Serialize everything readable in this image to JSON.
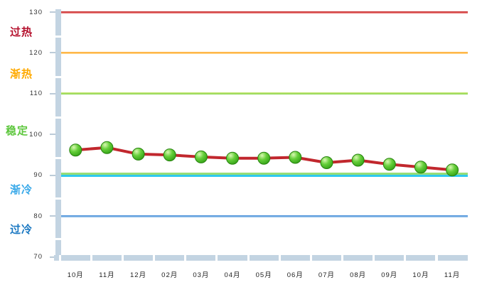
{
  "chart_data": {
    "type": "line",
    "title": "",
    "xlabel": "",
    "ylabel": "",
    "categories": [
      "10月",
      "11月",
      "12月",
      "02月",
      "03月",
      "04月",
      "05月",
      "06月",
      "07月",
      "08月",
      "09月",
      "10月",
      "11月"
    ],
    "series": [
      {
        "name": "monthly-index",
        "values": [
          96.2,
          96.8,
          95.2,
          95.0,
          94.5,
          94.2,
          94.2,
          94.4,
          93.1,
          93.7,
          92.7,
          92.0,
          91.3
        ],
        "line_color": "#c1272d",
        "marker_fill": "#4db82c",
        "marker_border": "#27830e"
      }
    ],
    "ylim": [
      70,
      130
    ],
    "yticks": [
      130,
      120,
      110,
      100,
      90,
      80,
      70
    ],
    "grid": false,
    "legend_position": "none",
    "zone_labels": [
      {
        "text": "过热",
        "name": "overheated",
        "color": "#b5122e",
        "y_value": 125.5
      },
      {
        "text": "渐热",
        "name": "warming",
        "color": "#ffaa00",
        "y_value": 115.2
      },
      {
        "text": "稳定",
        "name": "stable",
        "color": "#5ec73e",
        "y_value": 101.2
      },
      {
        "text": "渐冷",
        "name": "cooling",
        "color": "#39a9e9",
        "y_value": 86.9
      },
      {
        "text": "过冷",
        "name": "overcooled",
        "color": "#1a78c2",
        "y_value": 77.0
      }
    ],
    "threshold_lines": [
      {
        "value": 130,
        "colors": [
          "#c41b1b",
          "#ef9090"
        ],
        "double": false
      },
      {
        "value": 120,
        "colors": [
          "#ffa826",
          "#ffd894"
        ],
        "double": false
      },
      {
        "value": 110,
        "colors": [
          "#cfe87a",
          "#86d44e"
        ],
        "double": false
      },
      {
        "value": 90,
        "colors": [
          "#97dd77",
          "#2fc9ef"
        ],
        "double": true
      },
      {
        "value": 80,
        "colors": [
          "#4a90d9",
          "#9cc6ec"
        ],
        "double": false
      }
    ],
    "axis_bar_color": "#c3d4e2"
  }
}
